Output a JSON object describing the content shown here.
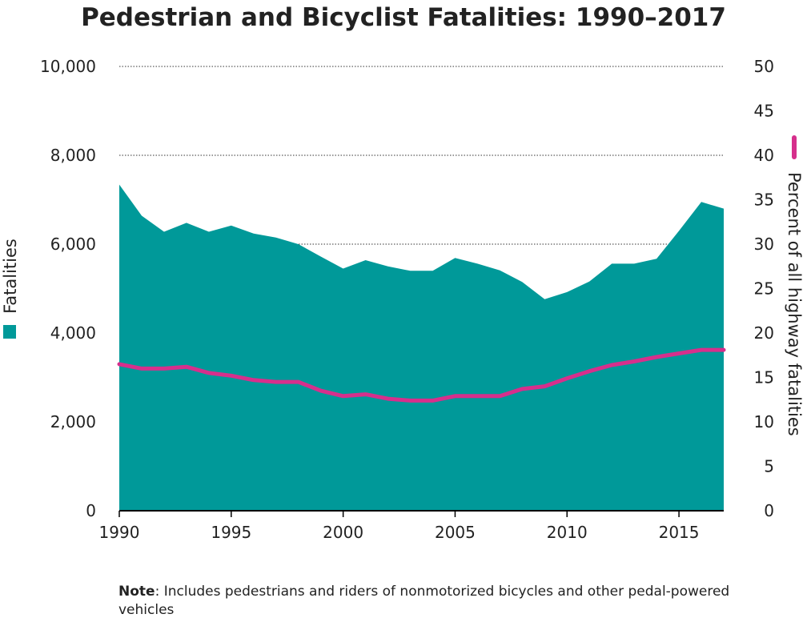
{
  "chart_data": {
    "type": "area",
    "title": "Pedestrian and Bicyclist Fatalities: 1990–2017",
    "x": [
      1990,
      1991,
      1992,
      1993,
      1994,
      1995,
      1996,
      1997,
      1998,
      1999,
      2000,
      2001,
      2002,
      2003,
      2004,
      2005,
      2006,
      2007,
      2008,
      2009,
      2010,
      2011,
      2012,
      2013,
      2014,
      2015,
      2016,
      2017
    ],
    "series": [
      {
        "name": "Fatalities",
        "axis": "left",
        "type": "area",
        "color": "#009999",
        "values": [
          7340,
          6640,
          6280,
          6480,
          6280,
          6420,
          6240,
          6150,
          6000,
          5720,
          5450,
          5640,
          5500,
          5400,
          5400,
          5690,
          5560,
          5410,
          5150,
          4760,
          4920,
          5160,
          5560,
          5560,
          5670,
          6300,
          6950,
          6800
        ]
      },
      {
        "name": "Percent of all highway fatalities",
        "axis": "right",
        "type": "line",
        "color": "#d62f8c",
        "values": [
          16.5,
          16.0,
          16.0,
          16.2,
          15.5,
          15.2,
          14.7,
          14.5,
          14.5,
          13.5,
          12.9,
          13.1,
          12.6,
          12.4,
          12.4,
          12.9,
          12.9,
          12.9,
          13.7,
          14.0,
          14.9,
          15.7,
          16.4,
          16.8,
          17.3,
          17.7,
          18.1,
          18.1
        ]
      }
    ],
    "left_axis": {
      "label": "Fatalities",
      "ylim": [
        0,
        10000
      ],
      "ticks": [
        "0",
        "2,000",
        "4,000",
        "6,000",
        "8,000",
        "10,000"
      ]
    },
    "right_axis": {
      "label": "Percent of all highway fatalities",
      "ylim": [
        0,
        50
      ],
      "ticks": [
        "0",
        "5",
        "10",
        "15",
        "20",
        "25",
        "30",
        "35",
        "40",
        "45",
        "50"
      ]
    },
    "x_ticks": [
      "1990",
      "1995",
      "2000",
      "2005",
      "2010",
      "2015"
    ],
    "grid": "dotted horizontal at 6,000, 8,000 and 10,000",
    "legend": "left and right axis labels with color swatches"
  },
  "note": {
    "label": "Note",
    "text": ": Includes pedestrians and riders of nonmotorized bicycles and other pedal-powered vehicles"
  }
}
